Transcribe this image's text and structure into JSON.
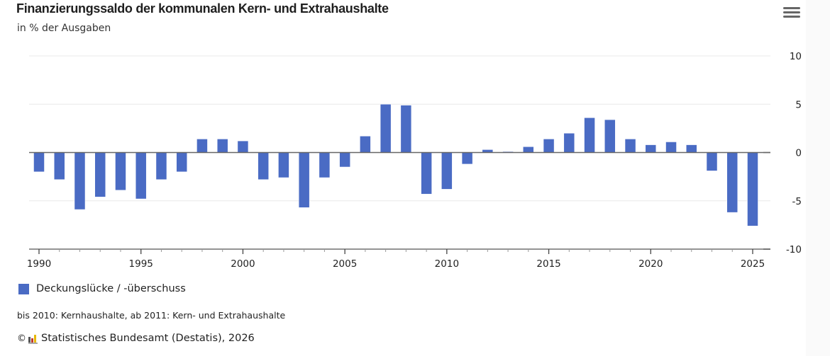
{
  "header": {
    "title": "Finanzierungssaldo der kommunalen Kern- und Extrahaushalte",
    "subtitle": "in % der Ausgaben",
    "menu_icon": "hamburger-menu-icon"
  },
  "colors": {
    "bar": "#4a6bc4",
    "zero_line": "#666666",
    "grid": "#e8e8e8",
    "axis": "#555555"
  },
  "legend": {
    "label": "Deckungslücke / -überschuss"
  },
  "footer": {
    "note": "bis 2010: Kernhaushalte, ab 2011: Kern- und Extrahaushalte",
    "copyright_symbol": "©",
    "source": "Statistisches Bundesamt (Destatis), 2026"
  },
  "chart_data": {
    "type": "bar",
    "title": "Finanzierungssaldo der kommunalen Kern- und Extrahaushalte",
    "subtitle": "in % der Ausgaben",
    "xlabel": "",
    "ylabel": "in % der Ausgaben",
    "ylim": [
      -10,
      10
    ],
    "yticks": [
      10,
      5,
      0,
      -5,
      -10
    ],
    "y_axis_position": "right",
    "grid": true,
    "legend_position": "bottom-left",
    "xticks": [
      "1990",
      "1995",
      "2000",
      "2005",
      "2010",
      "2015",
      "2020",
      "2025"
    ],
    "categories": [
      1990,
      1991,
      1992,
      1993,
      1994,
      1995,
      1996,
      1997,
      1998,
      1999,
      2000,
      2001,
      2002,
      2003,
      2004,
      2005,
      2006,
      2007,
      2008,
      2009,
      2010,
      2011,
      2012,
      2013,
      2014,
      2015,
      2016,
      2017,
      2018,
      2019,
      2020,
      2021,
      2022,
      2023,
      2024,
      2025
    ],
    "series": [
      {
        "name": "Deckungslücke / -überschuss",
        "values": [
          -2.0,
          -2.8,
          -5.9,
          -4.6,
          -3.9,
          -4.8,
          -2.8,
          -2.0,
          1.4,
          1.4,
          1.2,
          -2.8,
          -2.6,
          -5.7,
          -2.6,
          -1.5,
          1.7,
          5.0,
          4.9,
          -4.3,
          -3.8,
          -1.2,
          0.3,
          0.1,
          0.6,
          1.4,
          2.0,
          3.6,
          3.4,
          1.4,
          0.8,
          1.1,
          0.8,
          -1.9,
          -6.2,
          -7.6
        ]
      }
    ]
  }
}
